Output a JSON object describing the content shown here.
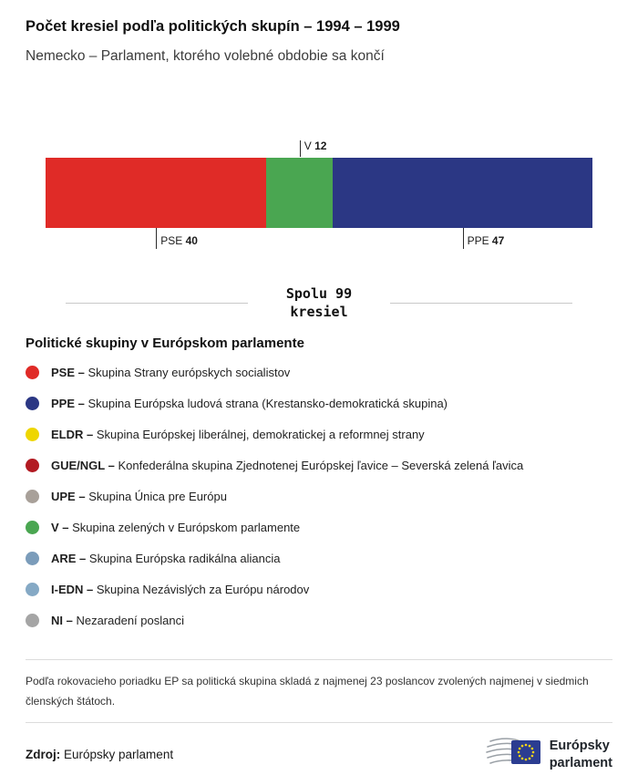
{
  "header": {
    "title": "Počet kresiel podľa politických skupín – 1994 – 1999",
    "subtitle": "Nemecko – Parlament, ktorého volebné obdobie sa končí"
  },
  "chart_data": {
    "type": "bar",
    "orientation": "horizontal-stacked",
    "total": 99,
    "total_line1": "Spolu 99",
    "total_line2": "kresiel",
    "series": [
      {
        "name": "PSE",
        "value": 40,
        "color": "#e02b27",
        "label_position": "below"
      },
      {
        "name": "V",
        "value": 12,
        "color": "#4aa651",
        "label_position": "above"
      },
      {
        "name": "PPE",
        "value": 47,
        "color": "#2b3784",
        "label_position": "below"
      }
    ]
  },
  "legend": {
    "heading": "Politické skupiny v Európskom parlamente",
    "items": [
      {
        "abbr": "PSE –",
        "label": "Skupina Strany európskych socialistov",
        "color": "#e02b27"
      },
      {
        "abbr": "PPE –",
        "label": "Skupina Európska ludová strana (Krestansko-demokratická skupina)",
        "color": "#2b3784"
      },
      {
        "abbr": "ELDR –",
        "label": "Skupina Európskej liberálnej, demokratickej a reformnej strany",
        "color": "#eed600"
      },
      {
        "abbr": "GUE/NGL –",
        "label": "Konfederálna skupina Zjednotenej Európskej ľavice – Severská zelená ľavica",
        "color": "#b21a22"
      },
      {
        "abbr": "UPE –",
        "label": "Skupina Única pre Európu",
        "color": "#a8a099"
      },
      {
        "abbr": "V –",
        "label": "Skupina zelených v Európskom parlamente",
        "color": "#4aa651"
      },
      {
        "abbr": "ARE –",
        "label": "Skupina Európska radikálna aliancia",
        "color": "#7b9cba"
      },
      {
        "abbr": "I-EDN –",
        "label": "Skupina Nezávislých za Európu národov",
        "color": "#85a9c5"
      },
      {
        "abbr": "NI –",
        "label": "Nezaradení poslanci",
        "color": "#a5a5a5"
      }
    ]
  },
  "footnote": "Podľa rokovacieho poriadku EP sa politická skupina skladá z najmenej 23 poslancov zvolených najmenej v siedmich členských štátoch.",
  "source": {
    "label": "Zdroj:",
    "value": "Európsky parlament"
  },
  "logo": {
    "line1": "Európsky",
    "line2": "parlament"
  }
}
